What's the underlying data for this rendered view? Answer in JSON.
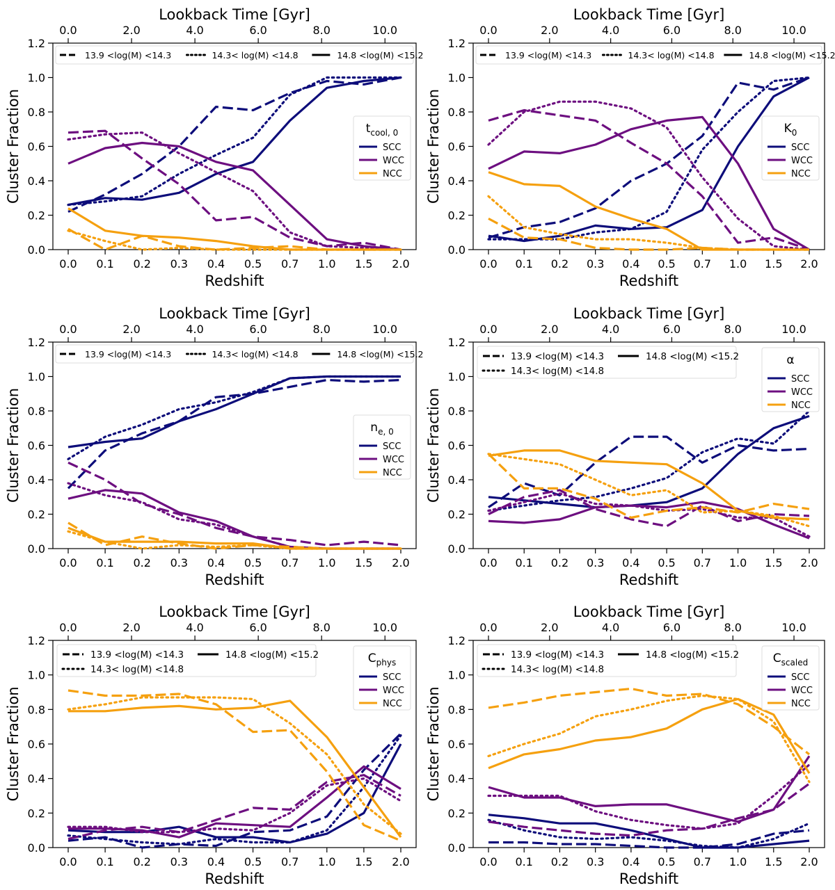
{
  "colors": {
    "SCC": "#0d0d7a",
    "WCC": "#6d0f80",
    "NCC": "#f5a00f"
  },
  "mass_bins": [
    {
      "label": "13.9 <log(M) <14.3",
      "style": "dashed"
    },
    {
      "label": "14.3< log(M) <14.8",
      "style": "dotted"
    },
    {
      "label": "14.8 <log(M) <15.2",
      "style": "solid"
    }
  ],
  "class_labels": [
    "SCC",
    "WCC",
    "NCC"
  ],
  "shared_axes": {
    "xlabel": "Redshift",
    "ylabel": "Cluster Fraction",
    "top_xlabel": "Lookback Time [Gyr]",
    "x_tick_labels": [
      "0.0",
      "0.1",
      "0.2",
      "0.3",
      "0.4",
      "0.5",
      "0.7",
      "1.0",
      "1.5",
      "2.0"
    ],
    "top_tick_labels": [
      "0.0",
      "2.0",
      "4.0",
      "6.0",
      "8.0",
      "10.0"
    ],
    "top_tick_values": [
      0,
      2,
      4,
      6,
      8,
      10
    ],
    "y_tick_labels": [
      "0.0",
      "0.2",
      "0.4",
      "0.6",
      "0.8",
      "1.0",
      "1.2"
    ],
    "ylim": [
      0,
      1.2
    ]
  },
  "chart_data": [
    {
      "type": "line",
      "title_main": "t",
      "title_sub": "cool, 0",
      "legend_mass_layout": "row",
      "x": [
        0.0,
        0.1,
        0.2,
        0.3,
        0.4,
        0.5,
        0.7,
        1.0,
        1.5,
        2.0
      ],
      "series": [
        {
          "cls": "SCC",
          "bin": "dashed",
          "values": [
            0.22,
            0.32,
            0.44,
            0.6,
            0.83,
            0.81,
            0.91,
            0.98,
            0.96,
            1.0
          ]
        },
        {
          "cls": "SCC",
          "bin": "dotted",
          "values": [
            0.26,
            0.28,
            0.31,
            0.44,
            0.55,
            0.65,
            0.9,
            1.0,
            1.0,
            1.0
          ]
        },
        {
          "cls": "SCC",
          "bin": "solid",
          "values": [
            0.26,
            0.3,
            0.29,
            0.33,
            0.44,
            0.51,
            0.75,
            0.94,
            0.98,
            1.0
          ]
        },
        {
          "cls": "WCC",
          "bin": "dashed",
          "values": [
            0.68,
            0.69,
            0.53,
            0.38,
            0.17,
            0.19,
            0.07,
            0.02,
            0.04,
            0.0
          ]
        },
        {
          "cls": "WCC",
          "bin": "dotted",
          "values": [
            0.64,
            0.67,
            0.68,
            0.56,
            0.45,
            0.34,
            0.1,
            0.02,
            0.01,
            0.0
          ]
        },
        {
          "cls": "WCC",
          "bin": "solid",
          "values": [
            0.5,
            0.59,
            0.62,
            0.6,
            0.51,
            0.46,
            0.26,
            0.06,
            0.02,
            0.0
          ]
        },
        {
          "cls": "NCC",
          "bin": "dashed",
          "values": [
            0.12,
            0.0,
            0.08,
            0.02,
            0.0,
            0.01,
            0.02,
            0.0,
            0.0,
            0.0
          ]
        },
        {
          "cls": "NCC",
          "bin": "dotted",
          "values": [
            0.11,
            0.05,
            0.0,
            0.01,
            0.0,
            0.0,
            0.0,
            0.0,
            0.0,
            0.0
          ]
        },
        {
          "cls": "NCC",
          "bin": "solid",
          "values": [
            0.24,
            0.11,
            0.08,
            0.07,
            0.05,
            0.02,
            0.0,
            0.0,
            0.0,
            0.0
          ]
        }
      ]
    },
    {
      "type": "line",
      "title_main": "K",
      "title_sub": "0",
      "legend_mass_layout": "row",
      "x": [
        0.0,
        0.1,
        0.2,
        0.3,
        0.4,
        0.5,
        0.7,
        1.0,
        1.5,
        2.0
      ],
      "series": [
        {
          "cls": "SCC",
          "bin": "dashed",
          "values": [
            0.07,
            0.13,
            0.16,
            0.24,
            0.4,
            0.5,
            0.66,
            0.97,
            0.93,
            1.0
          ]
        },
        {
          "cls": "SCC",
          "bin": "dotted",
          "values": [
            0.06,
            0.06,
            0.06,
            0.1,
            0.12,
            0.22,
            0.58,
            0.8,
            0.98,
            1.0
          ]
        },
        {
          "cls": "SCC",
          "bin": "solid",
          "values": [
            0.08,
            0.05,
            0.08,
            0.14,
            0.12,
            0.13,
            0.23,
            0.6,
            0.89,
            1.0
          ]
        },
        {
          "cls": "WCC",
          "bin": "dashed",
          "values": [
            0.75,
            0.81,
            0.78,
            0.75,
            0.62,
            0.5,
            0.31,
            0.04,
            0.07,
            0.0
          ]
        },
        {
          "cls": "WCC",
          "bin": "dotted",
          "values": [
            0.61,
            0.8,
            0.86,
            0.86,
            0.82,
            0.71,
            0.42,
            0.18,
            0.02,
            0.0
          ]
        },
        {
          "cls": "WCC",
          "bin": "solid",
          "values": [
            0.47,
            0.57,
            0.56,
            0.61,
            0.7,
            0.75,
            0.77,
            0.5,
            0.12,
            0.0
          ]
        },
        {
          "cls": "NCC",
          "bin": "dashed",
          "values": [
            0.18,
            0.07,
            0.06,
            0.01,
            0.0,
            0.0,
            0.01,
            0.0,
            0.0,
            0.0
          ]
        },
        {
          "cls": "NCC",
          "bin": "dotted",
          "values": [
            0.31,
            0.13,
            0.09,
            0.06,
            0.06,
            0.04,
            0.01,
            0.0,
            0.0,
            0.0
          ]
        },
        {
          "cls": "NCC",
          "bin": "solid",
          "values": [
            0.45,
            0.38,
            0.37,
            0.25,
            0.18,
            0.12,
            0.0,
            0.0,
            0.0,
            0.0
          ]
        }
      ]
    },
    {
      "type": "line",
      "title_main": "n",
      "title_sub": "e, 0",
      "legend_mass_layout": "row",
      "x": [
        0.0,
        0.1,
        0.2,
        0.3,
        0.4,
        0.5,
        0.7,
        1.0,
        1.5,
        2.0
      ],
      "series": [
        {
          "cls": "SCC",
          "bin": "dashed",
          "values": [
            0.35,
            0.57,
            0.67,
            0.74,
            0.88,
            0.9,
            0.94,
            0.98,
            0.97,
            0.98
          ]
        },
        {
          "cls": "SCC",
          "bin": "dotted",
          "values": [
            0.52,
            0.65,
            0.72,
            0.81,
            0.85,
            0.91,
            0.99,
            1.0,
            1.0,
            1.0
          ]
        },
        {
          "cls": "SCC",
          "bin": "solid",
          "values": [
            0.59,
            0.62,
            0.64,
            0.74,
            0.81,
            0.9,
            0.99,
            1.0,
            1.0,
            1.0
          ]
        },
        {
          "cls": "WCC",
          "bin": "dashed",
          "values": [
            0.5,
            0.4,
            0.26,
            0.2,
            0.12,
            0.07,
            0.05,
            0.02,
            0.04,
            0.02
          ]
        },
        {
          "cls": "WCC",
          "bin": "dotted",
          "values": [
            0.38,
            0.31,
            0.27,
            0.17,
            0.14,
            0.07,
            0.01,
            0.0,
            0.0,
            0.0
          ]
        },
        {
          "cls": "WCC",
          "bin": "solid",
          "values": [
            0.29,
            0.34,
            0.32,
            0.21,
            0.16,
            0.07,
            0.01,
            0.0,
            0.0,
            0.0
          ]
        },
        {
          "cls": "NCC",
          "bin": "dashed",
          "values": [
            0.15,
            0.02,
            0.07,
            0.03,
            0.0,
            0.02,
            0.01,
            0.0,
            0.0,
            0.0
          ]
        },
        {
          "cls": "NCC",
          "bin": "dotted",
          "values": [
            0.1,
            0.04,
            0.0,
            0.02,
            0.01,
            0.02,
            0.0,
            0.0,
            0.0,
            0.0
          ]
        },
        {
          "cls": "NCC",
          "bin": "solid",
          "values": [
            0.12,
            0.04,
            0.04,
            0.04,
            0.03,
            0.03,
            0.0,
            0.0,
            0.0,
            0.0
          ]
        }
      ]
    },
    {
      "type": "line",
      "title_main": "α",
      "title_sub": "",
      "legend_mass_layout": "grid",
      "x": [
        0.0,
        0.1,
        0.2,
        0.3,
        0.4,
        0.5,
        0.7,
        1.0,
        1.5,
        2.0
      ],
      "series": [
        {
          "cls": "SCC",
          "bin": "dashed",
          "values": [
            0.24,
            0.38,
            0.31,
            0.5,
            0.65,
            0.65,
            0.5,
            0.6,
            0.57,
            0.58
          ]
        },
        {
          "cls": "SCC",
          "bin": "dotted",
          "values": [
            0.22,
            0.25,
            0.28,
            0.3,
            0.35,
            0.41,
            0.56,
            0.64,
            0.61,
            0.8
          ]
        },
        {
          "cls": "SCC",
          "bin": "solid",
          "values": [
            0.3,
            0.28,
            0.26,
            0.24,
            0.25,
            0.27,
            0.35,
            0.55,
            0.7,
            0.77
          ]
        },
        {
          "cls": "WCC",
          "bin": "dashed",
          "values": [
            0.2,
            0.3,
            0.34,
            0.23,
            0.17,
            0.13,
            0.25,
            0.16,
            0.2,
            0.19
          ]
        },
        {
          "cls": "WCC",
          "bin": "dotted",
          "values": [
            0.22,
            0.27,
            0.32,
            0.26,
            0.25,
            0.22,
            0.23,
            0.18,
            0.18,
            0.07
          ]
        },
        {
          "cls": "WCC",
          "bin": "solid",
          "values": [
            0.16,
            0.15,
            0.17,
            0.24,
            0.25,
            0.24,
            0.27,
            0.23,
            0.14,
            0.06
          ]
        },
        {
          "cls": "NCC",
          "bin": "dashed",
          "values": [
            0.55,
            0.35,
            0.35,
            0.29,
            0.18,
            0.22,
            0.24,
            0.21,
            0.26,
            0.23
          ]
        },
        {
          "cls": "NCC",
          "bin": "dotted",
          "values": [
            0.55,
            0.52,
            0.49,
            0.4,
            0.31,
            0.34,
            0.21,
            0.22,
            0.19,
            0.13
          ]
        },
        {
          "cls": "NCC",
          "bin": "solid",
          "values": [
            0.54,
            0.57,
            0.57,
            0.51,
            0.5,
            0.49,
            0.38,
            0.22,
            0.18,
            0.17
          ]
        }
      ]
    },
    {
      "type": "line",
      "title_main": "C",
      "title_sub": "phys",
      "legend_mass_layout": "grid",
      "x": [
        0.0,
        0.1,
        0.2,
        0.3,
        0.4,
        0.5,
        0.7,
        1.0,
        1.5,
        2.0
      ],
      "series": [
        {
          "cls": "SCC",
          "bin": "dashed",
          "values": [
            0.04,
            0.06,
            0.0,
            0.02,
            0.01,
            0.09,
            0.1,
            0.18,
            0.45,
            0.66
          ]
        },
        {
          "cls": "SCC",
          "bin": "dotted",
          "values": [
            0.07,
            0.05,
            0.03,
            0.02,
            0.05,
            0.03,
            0.03,
            0.1,
            0.35,
            0.65
          ]
        },
        {
          "cls": "SCC",
          "bin": "solid",
          "values": [
            0.1,
            0.09,
            0.09,
            0.12,
            0.06,
            0.06,
            0.03,
            0.08,
            0.2,
            0.6
          ]
        },
        {
          "cls": "WCC",
          "bin": "dashed",
          "values": [
            0.05,
            0.1,
            0.12,
            0.09,
            0.16,
            0.23,
            0.22,
            0.38,
            0.42,
            0.3
          ]
        },
        {
          "cls": "WCC",
          "bin": "dotted",
          "values": [
            0.12,
            0.12,
            0.09,
            0.09,
            0.11,
            0.1,
            0.2,
            0.36,
            0.4,
            0.27
          ]
        },
        {
          "cls": "WCC",
          "bin": "solid",
          "values": [
            0.11,
            0.11,
            0.1,
            0.06,
            0.14,
            0.13,
            0.12,
            0.29,
            0.47,
            0.34
          ]
        },
        {
          "cls": "NCC",
          "bin": "dashed",
          "values": [
            0.91,
            0.88,
            0.88,
            0.89,
            0.83,
            0.67,
            0.68,
            0.44,
            0.13,
            0.04
          ]
        },
        {
          "cls": "NCC",
          "bin": "dotted",
          "values": [
            0.8,
            0.83,
            0.87,
            0.87,
            0.87,
            0.86,
            0.72,
            0.54,
            0.25,
            0.08
          ]
        },
        {
          "cls": "NCC",
          "bin": "solid",
          "values": [
            0.79,
            0.79,
            0.81,
            0.82,
            0.8,
            0.81,
            0.85,
            0.64,
            0.35,
            0.06
          ]
        }
      ]
    },
    {
      "type": "line",
      "title_main": "C",
      "title_sub": "scaled",
      "legend_mass_layout": "grid",
      "x": [
        0.0,
        0.1,
        0.2,
        0.3,
        0.4,
        0.5,
        0.7,
        1.0,
        1.5,
        2.0
      ],
      "series": [
        {
          "cls": "SCC",
          "bin": "dashed",
          "values": [
            0.03,
            0.03,
            0.02,
            0.02,
            0.01,
            0.0,
            0.0,
            0.02,
            0.08,
            0.1
          ]
        },
        {
          "cls": "SCC",
          "bin": "dotted",
          "values": [
            0.16,
            0.1,
            0.06,
            0.05,
            0.06,
            0.04,
            0.01,
            0.0,
            0.05,
            0.14
          ]
        },
        {
          "cls": "SCC",
          "bin": "solid",
          "values": [
            0.19,
            0.17,
            0.14,
            0.14,
            0.1,
            0.05,
            0.0,
            0.0,
            0.02,
            0.04
          ]
        },
        {
          "cls": "WCC",
          "bin": "dashed",
          "values": [
            0.15,
            0.12,
            0.1,
            0.08,
            0.07,
            0.1,
            0.11,
            0.17,
            0.22,
            0.37
          ]
        },
        {
          "cls": "WCC",
          "bin": "dotted",
          "values": [
            0.3,
            0.3,
            0.3,
            0.21,
            0.16,
            0.13,
            0.11,
            0.14,
            0.3,
            0.48
          ]
        },
        {
          "cls": "WCC",
          "bin": "solid",
          "values": [
            0.35,
            0.29,
            0.29,
            0.24,
            0.25,
            0.25,
            0.2,
            0.15,
            0.22,
            0.53
          ]
        },
        {
          "cls": "NCC",
          "bin": "dashed",
          "values": [
            0.81,
            0.84,
            0.88,
            0.9,
            0.92,
            0.88,
            0.89,
            0.83,
            0.7,
            0.54
          ]
        },
        {
          "cls": "NCC",
          "bin": "dotted",
          "values": [
            0.53,
            0.6,
            0.66,
            0.76,
            0.8,
            0.85,
            0.88,
            0.86,
            0.73,
            0.38
          ]
        },
        {
          "cls": "NCC",
          "bin": "solid",
          "values": [
            0.46,
            0.54,
            0.57,
            0.62,
            0.64,
            0.69,
            0.8,
            0.86,
            0.77,
            0.43
          ]
        }
      ]
    }
  ]
}
